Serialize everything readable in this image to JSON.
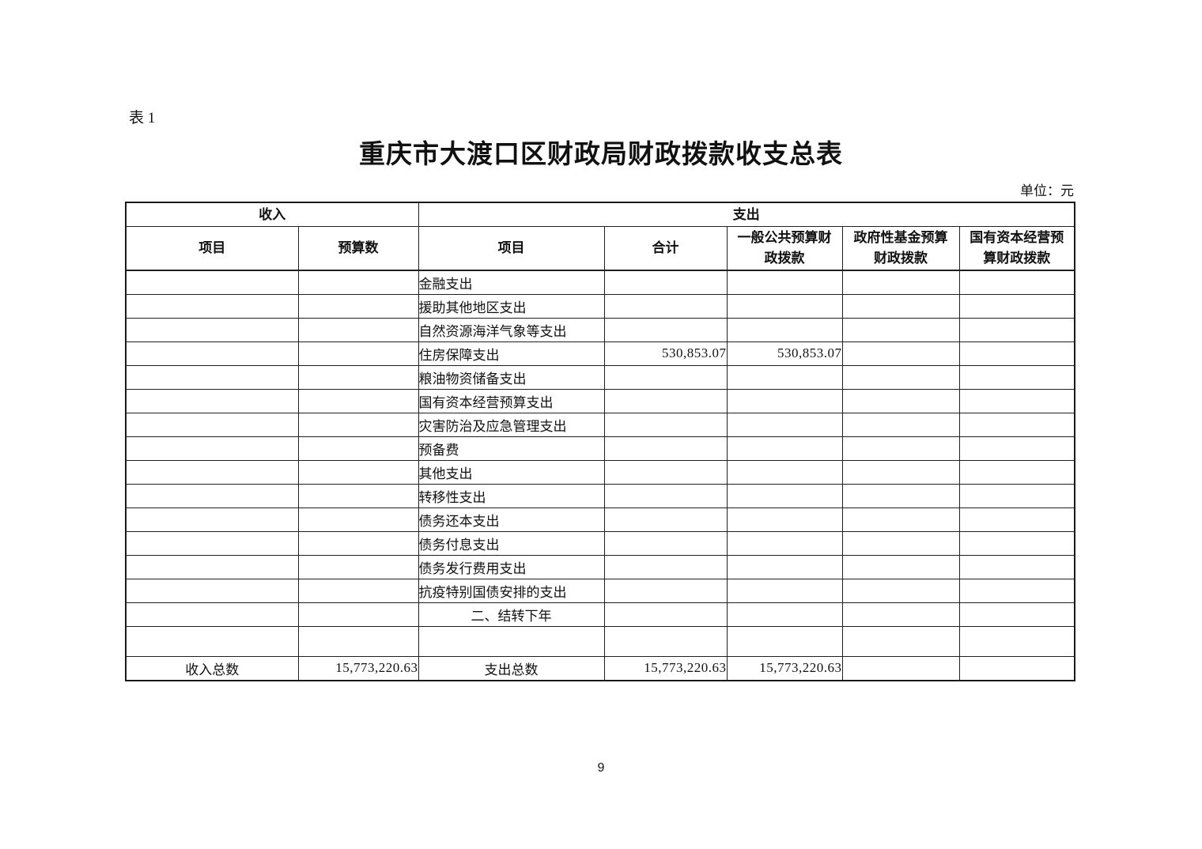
{
  "page": {
    "table_label": "表 1",
    "title": "重庆市大渡口区财政局财政拨款收支总表",
    "unit_label": "单位：元",
    "page_number": "9"
  },
  "table": {
    "group_headers": {
      "income": "收入",
      "expenditure": "支出"
    },
    "column_headers": [
      "项目",
      "预算数",
      "项目",
      "合计",
      "一般公共预算财\n政拨款",
      "政府性基金预算\n财政拨款",
      "国有资本经营预\n算财政拨款"
    ],
    "rows": [
      {
        "cells": [
          "",
          "",
          "金融支出",
          "",
          "",
          "",
          ""
        ]
      },
      {
        "cells": [
          "",
          "",
          "援助其他地区支出",
          "",
          "",
          "",
          ""
        ]
      },
      {
        "cells": [
          "",
          "",
          "自然资源海洋气象等支出",
          "",
          "",
          "",
          ""
        ]
      },
      {
        "cells": [
          "",
          "",
          "住房保障支出",
          "530,853.07",
          "530,853.07",
          "",
          ""
        ]
      },
      {
        "cells": [
          "",
          "",
          "粮油物资储备支出",
          "",
          "",
          "",
          ""
        ]
      },
      {
        "cells": [
          "",
          "",
          "国有资本经营预算支出",
          "",
          "",
          "",
          ""
        ]
      },
      {
        "cells": [
          "",
          "",
          "灾害防治及应急管理支出",
          "",
          "",
          "",
          ""
        ]
      },
      {
        "cells": [
          "",
          "",
          "预备费",
          "",
          "",
          "",
          ""
        ]
      },
      {
        "cells": [
          "",
          "",
          "其他支出",
          "",
          "",
          "",
          ""
        ]
      },
      {
        "cells": [
          "",
          "",
          "转移性支出",
          "",
          "",
          "",
          ""
        ]
      },
      {
        "cells": [
          "",
          "",
          "债务还本支出",
          "",
          "",
          "",
          ""
        ]
      },
      {
        "cells": [
          "",
          "",
          "债务付息支出",
          "",
          "",
          "",
          ""
        ]
      },
      {
        "cells": [
          "",
          "",
          "债务发行费用支出",
          "",
          "",
          "",
          ""
        ]
      },
      {
        "cells": [
          "",
          "",
          "抗疫特别国债安排的支出",
          "",
          "",
          "",
          ""
        ]
      },
      {
        "cells": [
          "",
          "",
          "二、结转下年",
          "",
          "",
          "",
          ""
        ],
        "item_align": "center"
      },
      {
        "cells": [
          "",
          "",
          "",
          "",
          "",
          "",
          ""
        ]
      },
      {
        "cells": [
          "收入总数",
          "15,773,220.63",
          "支出总数",
          "15,773,220.63",
          "15,773,220.63",
          "",
          ""
        ],
        "item_align": "center"
      }
    ]
  }
}
